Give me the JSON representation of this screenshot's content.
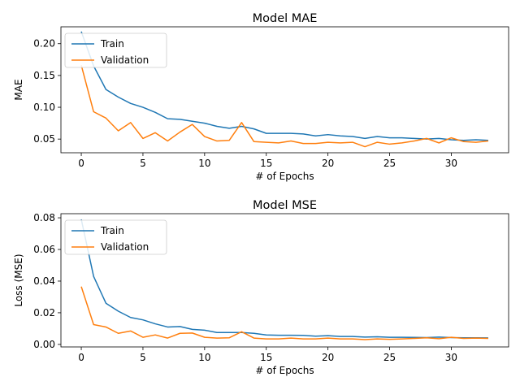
{
  "chart_data": [
    {
      "type": "line",
      "title": "Model MAE",
      "xlabel": "# of Epochs",
      "ylabel": "MAE",
      "xlim": [
        -1.65,
        34.65
      ],
      "ylim": [
        0.0285,
        0.2265
      ],
      "xticks": [
        0,
        5,
        10,
        15,
        20,
        25,
        30
      ],
      "yticks": [
        0.05,
        0.1,
        0.15,
        0.2
      ],
      "ytick_labels": [
        "0.05",
        "0.10",
        "0.15",
        "0.20"
      ],
      "legend": "upper-left",
      "grid": false,
      "x": [
        0,
        1,
        2,
        3,
        4,
        5,
        6,
        7,
        8,
        9,
        10,
        11,
        12,
        13,
        14,
        15,
        16,
        17,
        18,
        19,
        20,
        21,
        22,
        23,
        24,
        25,
        26,
        27,
        28,
        29,
        30,
        31,
        32,
        33
      ],
      "series": [
        {
          "name": "Train",
          "color": "#1f77b4",
          "values": [
            0.219,
            0.165,
            0.128,
            0.116,
            0.106,
            0.1,
            0.092,
            0.082,
            0.081,
            0.078,
            0.075,
            0.07,
            0.067,
            0.07,
            0.066,
            0.059,
            0.059,
            0.059,
            0.058,
            0.055,
            0.057,
            0.055,
            0.054,
            0.051,
            0.054,
            0.052,
            0.052,
            0.051,
            0.05,
            0.051,
            0.049,
            0.048,
            0.049,
            0.048
          ]
        },
        {
          "name": "Validation",
          "color": "#ff7f0e",
          "values": [
            0.166,
            0.093,
            0.083,
            0.063,
            0.076,
            0.051,
            0.06,
            0.047,
            0.061,
            0.073,
            0.054,
            0.047,
            0.048,
            0.076,
            0.046,
            0.045,
            0.044,
            0.047,
            0.043,
            0.043,
            0.045,
            0.044,
            0.045,
            0.038,
            0.045,
            0.042,
            0.044,
            0.047,
            0.051,
            0.044,
            0.052,
            0.046,
            0.045,
            0.047
          ]
        }
      ]
    },
    {
      "type": "line",
      "title": "Model MSE",
      "xlabel": "# of Epochs",
      "ylabel": "Loss (MSE)",
      "xlim": [
        -1.65,
        34.65
      ],
      "ylim": [
        -0.0016,
        0.0826
      ],
      "xticks": [
        0,
        5,
        10,
        15,
        20,
        25,
        30
      ],
      "yticks": [
        0.0,
        0.02,
        0.04,
        0.06,
        0.08
      ],
      "ytick_labels": [
        "0.00",
        "0.02",
        "0.04",
        "0.06",
        "0.08"
      ],
      "legend": "upper-left",
      "grid": false,
      "x": [
        0,
        1,
        2,
        3,
        4,
        5,
        6,
        7,
        8,
        9,
        10,
        11,
        12,
        13,
        14,
        15,
        16,
        17,
        18,
        19,
        20,
        21,
        22,
        23,
        24,
        25,
        26,
        27,
        28,
        29,
        30,
        31,
        32,
        33
      ],
      "series": [
        {
          "name": "Train",
          "color": "#1f77b4",
          "values": [
            0.079,
            0.043,
            0.026,
            0.021,
            0.017,
            0.0155,
            0.013,
            0.011,
            0.0113,
            0.0095,
            0.009,
            0.0075,
            0.0075,
            0.0075,
            0.007,
            0.006,
            0.0058,
            0.0058,
            0.0057,
            0.0052,
            0.0055,
            0.005,
            0.005,
            0.0046,
            0.0048,
            0.0045,
            0.0045,
            0.0044,
            0.0043,
            0.0046,
            0.0043,
            0.0042,
            0.0042,
            0.0041
          ]
        },
        {
          "name": "Validation",
          "color": "#ff7f0e",
          "values": [
            0.0365,
            0.0125,
            0.011,
            0.007,
            0.0085,
            0.0045,
            0.006,
            0.004,
            0.007,
            0.0072,
            0.0045,
            0.004,
            0.0042,
            0.008,
            0.004,
            0.0035,
            0.0035,
            0.004,
            0.0035,
            0.0035,
            0.004,
            0.0035,
            0.0035,
            0.003,
            0.0035,
            0.0032,
            0.0035,
            0.0038,
            0.0042,
            0.0036,
            0.0045,
            0.0038,
            0.004,
            0.0038
          ]
        }
      ]
    }
  ]
}
